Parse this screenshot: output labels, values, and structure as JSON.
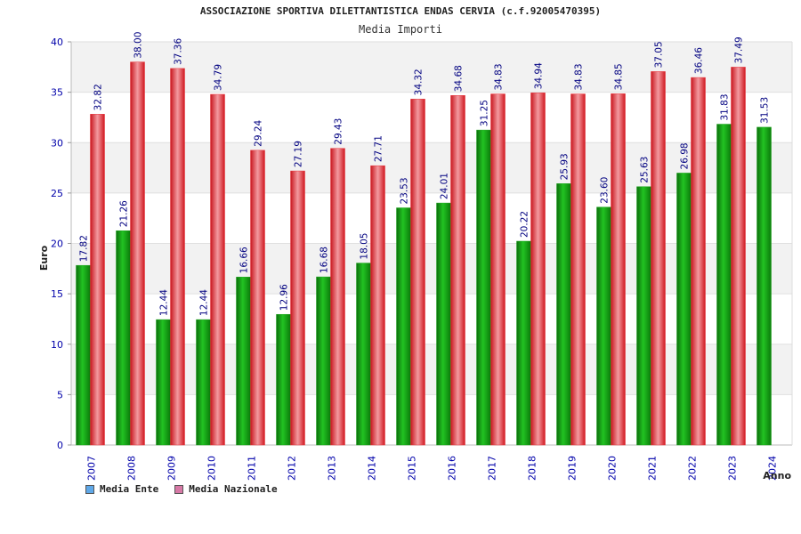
{
  "colors": {
    "ente": "#1aa31a",
    "nazionale": "#e8323a",
    "legend_ente": "#5fa8e8",
    "legend_nazionale": "#d779a6",
    "axis_text": "#0000aa",
    "band": "#f2f2f2"
  },
  "chart_data": {
    "type": "bar",
    "title": "ASSOCIAZIONE SPORTIVA DILETTANTISTICA ENDAS CERVIA (c.f.92005470395)",
    "subtitle": "Media Importi",
    "xlabel": "Anno",
    "ylabel": "Euro",
    "ylim": [
      0,
      40
    ],
    "yticks": [
      0,
      5,
      10,
      15,
      20,
      25,
      30,
      35,
      40
    ],
    "grid": true,
    "legend_position": "bottom-left",
    "categories": [
      "2007",
      "2008",
      "2009",
      "2010",
      "2011",
      "2012",
      "2013",
      "2014",
      "2015",
      "2016",
      "2017",
      "2018",
      "2019",
      "2020",
      "2021",
      "2022",
      "2023",
      "2024"
    ],
    "series": [
      {
        "name": "Media Ente",
        "values": [
          17.82,
          21.26,
          12.44,
          12.44,
          16.66,
          12.96,
          16.68,
          18.05,
          23.53,
          24.01,
          31.25,
          20.22,
          25.93,
          23.6,
          25.63,
          26.98,
          31.83,
          31.53
        ],
        "labels": [
          "17.82",
          "21.26",
          "12.44",
          "12.44",
          "16.66",
          "12.96",
          "16.68",
          "18.05",
          "23.53",
          "24.01",
          "31.25",
          "20.22",
          "25.93",
          "23.60",
          "25.63",
          "26.98",
          "31.83",
          "31.53"
        ]
      },
      {
        "name": "Media Nazionale",
        "values": [
          32.82,
          38.0,
          37.36,
          34.79,
          29.24,
          27.19,
          29.43,
          27.71,
          34.32,
          34.68,
          34.83,
          34.94,
          34.83,
          34.85,
          37.05,
          36.46,
          37.49,
          null
        ],
        "labels": [
          "32.82",
          "38.00",
          "37.36",
          "34.79",
          "29.24",
          "27.19",
          "29.43",
          "27.71",
          "34.32",
          "34.68",
          "34.83",
          "34.94",
          "34.83",
          "34.85",
          "37.05",
          "36.46",
          "37.49",
          ""
        ]
      }
    ]
  }
}
